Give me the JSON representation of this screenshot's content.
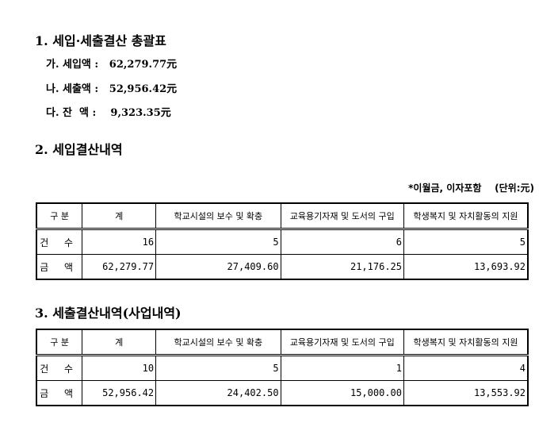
{
  "section1": {
    "title": "1. 세입·세출결산 총괄표",
    "items": [
      {
        "label": "가. 세입액 :",
        "value": "62,279.77元"
      },
      {
        "label": "나. 세출액 :",
        "value": "52,956.42元"
      },
      {
        "label": "다. 잔  액 :",
        "value": " 9,323.35元"
      }
    ]
  },
  "section2": {
    "title": "2. 세입결산내역",
    "note": "*이월금, 이자포함    (단위:元)",
    "headers": [
      "구 분",
      "계",
      "학교시설의 보수 및 확충",
      "교육용기자재 및 도서의 구입",
      "학생복지 및 자치활동의 지원"
    ],
    "rows": [
      {
        "label": "건 수",
        "cells": [
          "16",
          "5",
          "6",
          "5"
        ]
      },
      {
        "label": "금 액",
        "cells": [
          "62,279.77",
          "27,409.60",
          "21,176.25",
          "13,693.92"
        ]
      }
    ]
  },
  "section3": {
    "title": "3. 세출결산내역(사업내역)",
    "headers": [
      "구 분",
      "계",
      "학교시설의 보수 및 확충",
      "교육용기자재 및 도서의 구입",
      "학생복지 및 자치활동의 지원"
    ],
    "rows": [
      {
        "label": "건 수",
        "cells": [
          "10",
          "5",
          "1",
          "4"
        ]
      },
      {
        "label": "금 액",
        "cells": [
          "52,956.42",
          "24,402.50",
          "15,000.00",
          "13,553.92"
        ]
      }
    ]
  }
}
